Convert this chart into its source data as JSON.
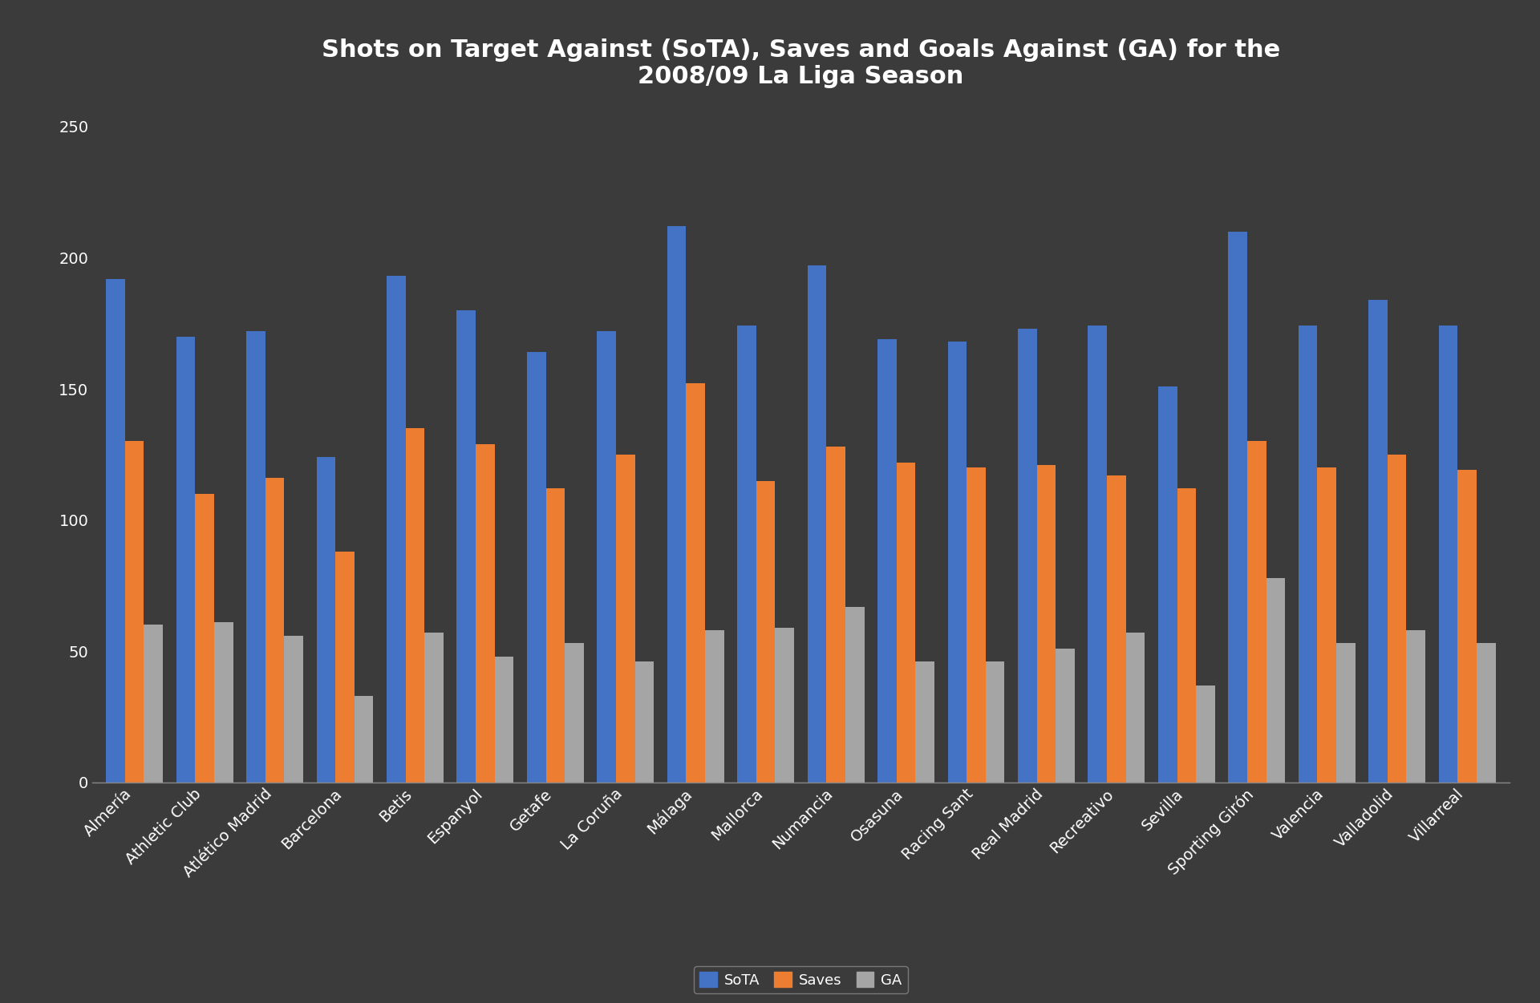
{
  "title": "Shots on Target Against (SoTA), Saves and Goals Against (GA) for the\n2008/09 La Liga Season",
  "teams": [
    "Almería",
    "Athletic Club",
    "Atlético Madrid",
    "Barcelona",
    "Betis",
    "Espanyol",
    "Getafe",
    "La Coruña",
    "Málaga",
    "Mallorca",
    "Numancia",
    "Osasuna",
    "Racing Sant",
    "Real Madrid",
    "Recreativo",
    "Sevilla",
    "Sporting Girón",
    "Valencia",
    "Valladolid",
    "Villarreal"
  ],
  "SoTA": [
    192,
    170,
    172,
    124,
    193,
    180,
    164,
    172,
    212,
    174,
    197,
    169,
    168,
    173,
    174,
    151,
    210,
    174,
    184,
    174
  ],
  "Saves": [
    130,
    110,
    116,
    88,
    135,
    129,
    112,
    125,
    152,
    115,
    128,
    122,
    120,
    121,
    117,
    112,
    130,
    120,
    125,
    119
  ],
  "GA": [
    60,
    61,
    56,
    33,
    57,
    48,
    53,
    46,
    58,
    59,
    67,
    46,
    46,
    51,
    57,
    37,
    78,
    53,
    58,
    53
  ],
  "background_color": "#3b3b3b",
  "bar_colors": [
    "#4472c4",
    "#ed7d31",
    "#a5a5a5"
  ],
  "ylim": [
    0,
    260
  ],
  "yticks": [
    0,
    50,
    100,
    150,
    200,
    250
  ],
  "title_fontsize": 22,
  "tick_fontsize": 14,
  "legend_fontsize": 13,
  "bar_width": 0.27
}
